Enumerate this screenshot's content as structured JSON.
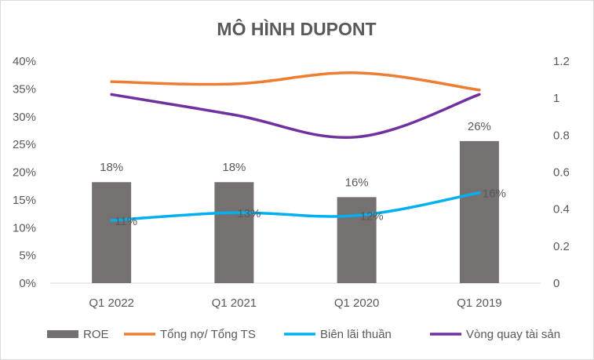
{
  "chart_data": {
    "type": "bar",
    "title": "MÔ HÌNH DUPONT",
    "categories": [
      "Q1 2022",
      "Q1 2021",
      "Q1 2020",
      "Q1 2019"
    ],
    "y_left": {
      "min": 0,
      "max": 40,
      "step": 5,
      "ticks": [
        "0%",
        "5%",
        "10%",
        "15%",
        "20%",
        "25%",
        "30%",
        "35%",
        "40%"
      ]
    },
    "y_right": {
      "min": 0,
      "max": 1.2,
      "step": 0.2,
      "ticks": [
        "0",
        "0.2",
        "0.4",
        "0.6",
        "0.8",
        "1",
        "1.2"
      ]
    },
    "grid": false,
    "legend_position": "bottom",
    "series": [
      {
        "name": "ROE",
        "type": "bar",
        "axis": "left",
        "color": "#767171",
        "values": [
          18.2,
          18.2,
          15.5,
          25.6
        ],
        "labels": [
          "18%",
          "18%",
          "16%",
          "26%"
        ]
      },
      {
        "name": "Tổng nợ/ Tổng TS",
        "type": "line",
        "axis": "left",
        "color": "#ED7D31",
        "values": [
          36.3,
          35.9,
          37.9,
          34.8
        ]
      },
      {
        "name": "Biên lãi thuần",
        "type": "line",
        "axis": "left",
        "color": "#00B0F0",
        "values": [
          11.3,
          12.7,
          12.2,
          16.3
        ],
        "labels": [
          "11%",
          "13%",
          "12%",
          "16%"
        ]
      },
      {
        "name": "Vòng quay tài sản",
        "type": "line",
        "axis": "right",
        "color": "#7030A0",
        "values": [
          1.02,
          0.91,
          0.79,
          1.02
        ]
      }
    ]
  }
}
